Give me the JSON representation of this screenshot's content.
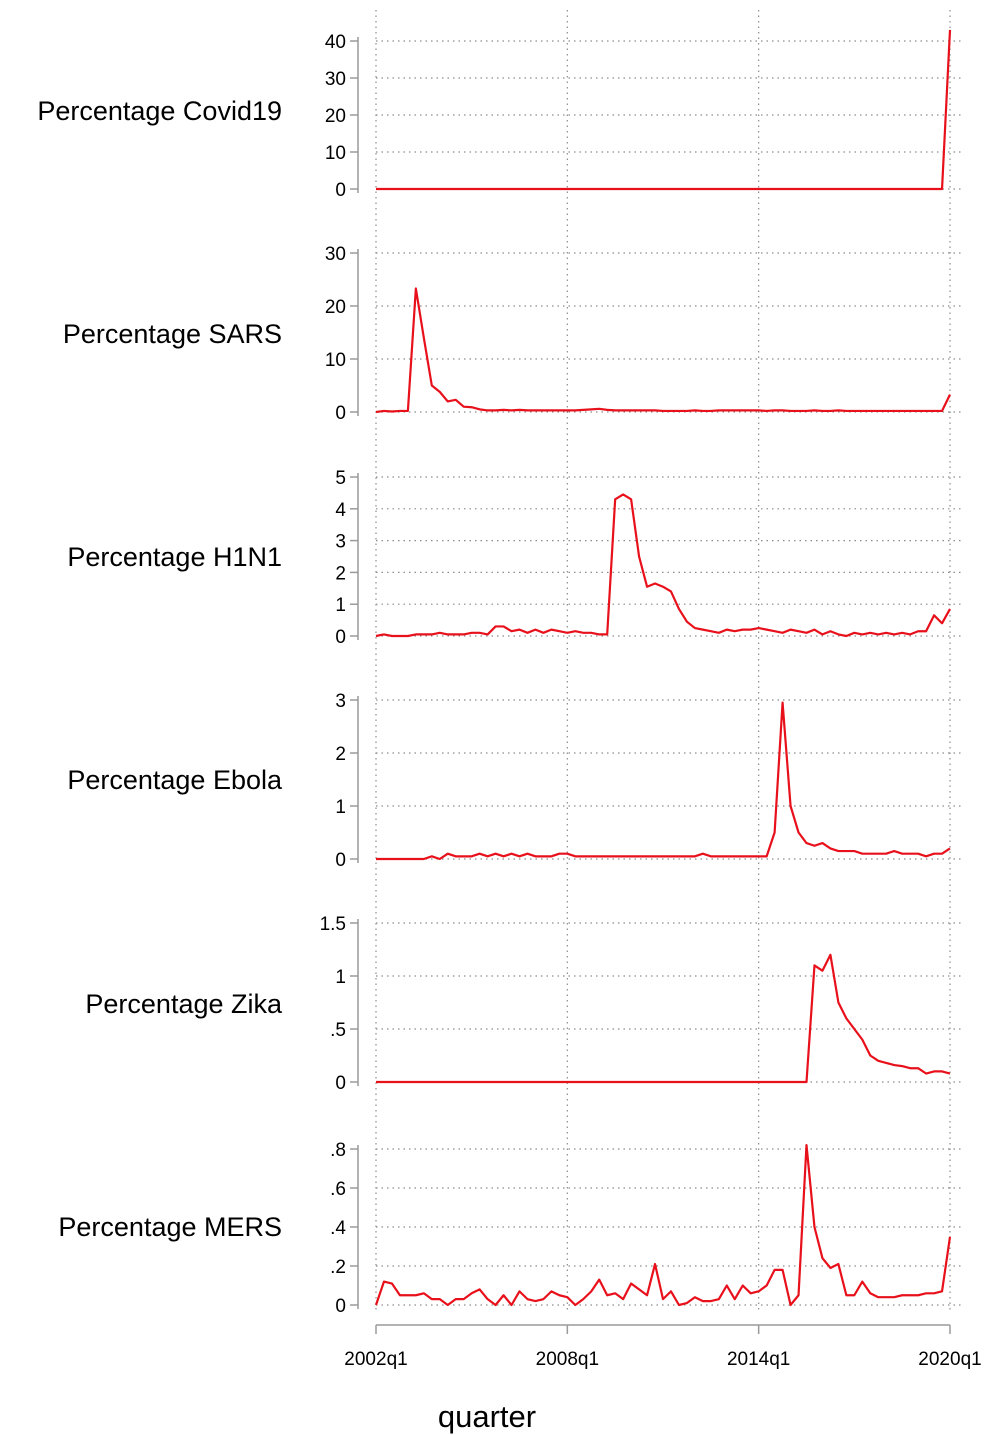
{
  "chart_data": {
    "type": "line",
    "xlabel": "quarter",
    "x_ticks": [
      "2002q1",
      "2008q1",
      "2014q1",
      "2020q1"
    ],
    "x_range": [
      "2002q1",
      "2020q1"
    ],
    "line_color": "#e8101b",
    "grid": true,
    "panels": [
      {
        "ylabel": "Percentage Covid19",
        "ylim": [
          0,
          40
        ],
        "yticks": [
          {
            "v": 0,
            "l": "0"
          },
          {
            "v": 10,
            "l": "10"
          },
          {
            "v": 20,
            "l": "20"
          },
          {
            "v": 30,
            "l": "30"
          },
          {
            "v": 40,
            "l": "40"
          }
        ],
        "values": [
          0,
          0,
          0,
          0,
          0,
          0,
          0,
          0,
          0,
          0,
          0,
          0,
          0,
          0,
          0,
          0,
          0,
          0,
          0,
          0,
          0,
          0,
          0,
          0,
          0,
          0,
          0,
          0,
          0,
          0,
          0,
          0,
          0,
          0,
          0,
          0,
          0,
          0,
          0,
          0,
          0,
          0,
          0,
          0,
          0,
          0,
          0,
          0,
          0,
          0,
          0,
          0,
          0,
          0,
          0,
          0,
          0,
          0,
          0,
          0,
          0,
          0,
          0,
          0,
          0,
          0,
          0,
          0,
          0,
          0,
          0,
          0,
          43
        ]
      },
      {
        "ylabel": "Percentage SARS",
        "ylim": [
          0,
          30
        ],
        "yticks": [
          {
            "v": 0,
            "l": "0"
          },
          {
            "v": 10,
            "l": "10"
          },
          {
            "v": 20,
            "l": "20"
          },
          {
            "v": 30,
            "l": "30"
          }
        ],
        "values": [
          0,
          0.2,
          0.1,
          0.2,
          0.2,
          23.3,
          14,
          5,
          3.8,
          2,
          2.3,
          1,
          0.9,
          0.5,
          0.3,
          0.3,
          0.4,
          0.3,
          0.4,
          0.3,
          0.3,
          0.3,
          0.3,
          0.3,
          0.3,
          0.3,
          0.4,
          0.5,
          0.6,
          0.4,
          0.3,
          0.3,
          0.3,
          0.3,
          0.3,
          0.3,
          0.2,
          0.2,
          0.2,
          0.2,
          0.3,
          0.2,
          0.2,
          0.3,
          0.3,
          0.3,
          0.3,
          0.3,
          0.3,
          0.2,
          0.3,
          0.3,
          0.2,
          0.2,
          0.2,
          0.3,
          0.2,
          0.2,
          0.3,
          0.2,
          0.2,
          0.2,
          0.2,
          0.2,
          0.2,
          0.2,
          0.2,
          0.2,
          0.2,
          0.2,
          0.2,
          0.2,
          3.3
        ]
      },
      {
        "ylabel": "Percentage H1N1",
        "ylim": [
          0,
          5
        ],
        "yticks": [
          {
            "v": 0,
            "l": "0"
          },
          {
            "v": 1,
            "l": "1"
          },
          {
            "v": 2,
            "l": "2"
          },
          {
            "v": 3,
            "l": "3"
          },
          {
            "v": 4,
            "l": "4"
          },
          {
            "v": 5,
            "l": "5"
          }
        ],
        "values": [
          0,
          0.05,
          0,
          0,
          0,
          0.05,
          0.05,
          0.05,
          0.1,
          0.05,
          0.05,
          0.05,
          0.1,
          0.1,
          0.05,
          0.3,
          0.3,
          0.15,
          0.2,
          0.1,
          0.2,
          0.1,
          0.2,
          0.15,
          0.1,
          0.15,
          0.1,
          0.1,
          0.05,
          0.05,
          4.3,
          4.45,
          4.3,
          2.5,
          1.55,
          1.65,
          1.55,
          1.4,
          0.85,
          0.45,
          0.25,
          0.2,
          0.15,
          0.1,
          0.2,
          0.15,
          0.2,
          0.2,
          0.25,
          0.2,
          0.15,
          0.1,
          0.2,
          0.15,
          0.1,
          0.2,
          0.05,
          0.15,
          0.05,
          0,
          0.1,
          0.05,
          0.1,
          0.05,
          0.1,
          0.05,
          0.1,
          0.05,
          0.15,
          0.15,
          0.65,
          0.4,
          0.85
        ]
      },
      {
        "ylabel": "Percentage Ebola",
        "ylim": [
          0,
          3
        ],
        "yticks": [
          {
            "v": 0,
            "l": "0"
          },
          {
            "v": 1,
            "l": "1"
          },
          {
            "v": 2,
            "l": "2"
          },
          {
            "v": 3,
            "l": "3"
          }
        ],
        "values": [
          0,
          0,
          0,
          0,
          0,
          0,
          0,
          0.05,
          0,
          0.1,
          0.05,
          0.05,
          0.05,
          0.1,
          0.05,
          0.1,
          0.05,
          0.1,
          0.05,
          0.1,
          0.05,
          0.05,
          0.05,
          0.1,
          0.1,
          0.05,
          0.05,
          0.05,
          0.05,
          0.05,
          0.05,
          0.05,
          0.05,
          0.05,
          0.05,
          0.05,
          0.05,
          0.05,
          0.05,
          0.05,
          0.05,
          0.1,
          0.05,
          0.05,
          0.05,
          0.05,
          0.05,
          0.05,
          0.05,
          0.05,
          0.5,
          2.95,
          1,
          0.5,
          0.3,
          0.25,
          0.3,
          0.2,
          0.15,
          0.15,
          0.15,
          0.1,
          0.1,
          0.1,
          0.1,
          0.15,
          0.1,
          0.1,
          0.1,
          0.05,
          0.1,
          0.1,
          0.2
        ]
      },
      {
        "ylabel": "Percentage Zika",
        "ylim": [
          0,
          1.5
        ],
        "yticks": [
          {
            "v": 0,
            "l": "0"
          },
          {
            "v": 0.5,
            "l": ".5"
          },
          {
            "v": 1,
            "l": "1"
          },
          {
            "v": 1.5,
            "l": "1.5"
          }
        ],
        "values": [
          0,
          0,
          0,
          0,
          0,
          0,
          0,
          0,
          0,
          0,
          0,
          0,
          0,
          0,
          0,
          0,
          0,
          0,
          0,
          0,
          0,
          0,
          0,
          0,
          0,
          0,
          0,
          0,
          0,
          0,
          0,
          0,
          0,
          0,
          0,
          0,
          0,
          0,
          0,
          0,
          0,
          0,
          0,
          0,
          0,
          0,
          0,
          0,
          0,
          0,
          0,
          0,
          0,
          0,
          0,
          1.1,
          1.05,
          1.2,
          0.75,
          0.6,
          0.5,
          0.4,
          0.25,
          0.2,
          0.18,
          0.16,
          0.15,
          0.13,
          0.13,
          0.08,
          0.1,
          0.1,
          0.08
        ]
      },
      {
        "ylabel": "Percentage MERS",
        "ylim": [
          0,
          0.8
        ],
        "yticks": [
          {
            "v": 0,
            "l": "0"
          },
          {
            "v": 0.2,
            "l": ".2"
          },
          {
            "v": 0.4,
            "l": ".4"
          },
          {
            "v": 0.6,
            "l": ".6"
          },
          {
            "v": 0.8,
            "l": ".8"
          }
        ],
        "values": [
          0,
          0.12,
          0.11,
          0.05,
          0.05,
          0.05,
          0.06,
          0.03,
          0.03,
          0,
          0.03,
          0.03,
          0.06,
          0.08,
          0.03,
          0,
          0.05,
          0,
          0.07,
          0.03,
          0.02,
          0.03,
          0.07,
          0.05,
          0.04,
          0,
          0.03,
          0.07,
          0.13,
          0.05,
          0.06,
          0.03,
          0.11,
          0.08,
          0.05,
          0.21,
          0.03,
          0.07,
          0,
          0.01,
          0.04,
          0.02,
          0.02,
          0.03,
          0.1,
          0.03,
          0.1,
          0.06,
          0.07,
          0.1,
          0.18,
          0.18,
          0,
          0.05,
          0.82,
          0.4,
          0.24,
          0.19,
          0.21,
          0.05,
          0.05,
          0.12,
          0.06,
          0.04,
          0.04,
          0.04,
          0.05,
          0.05,
          0.05,
          0.06,
          0.06,
          0.07,
          0.35
        ]
      }
    ]
  }
}
